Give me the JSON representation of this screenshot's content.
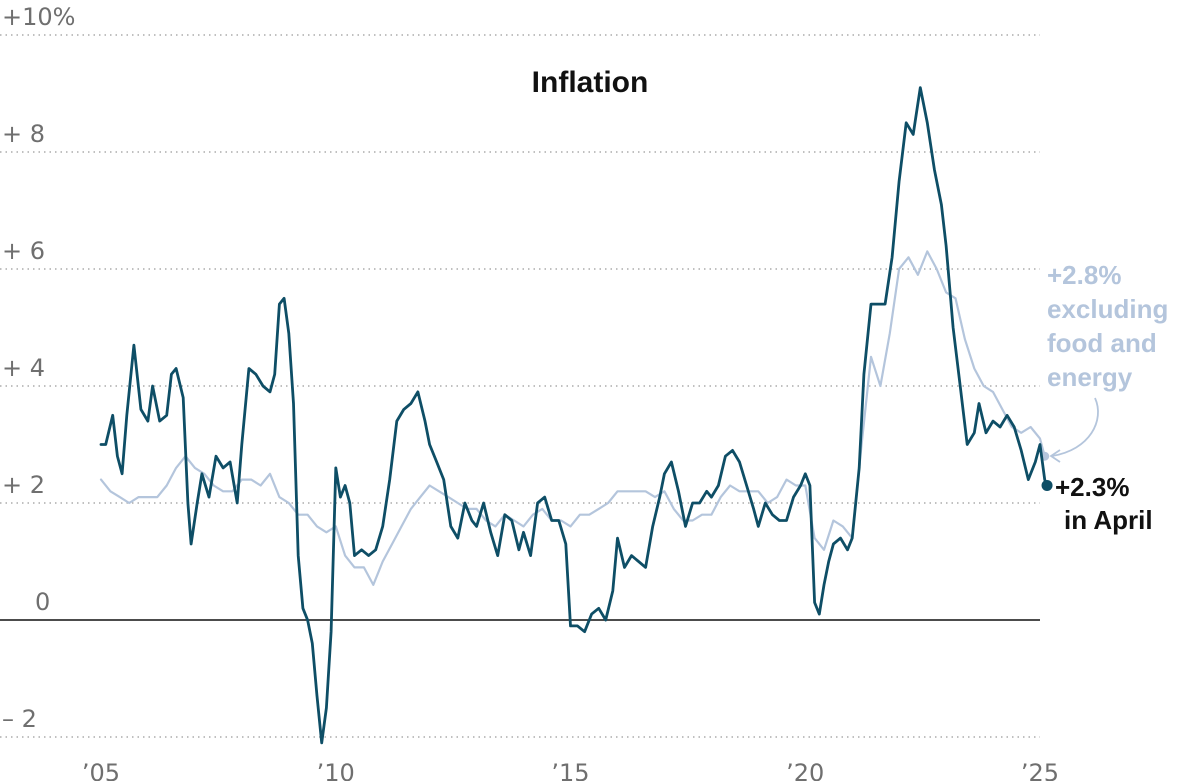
{
  "chart_data": {
    "type": "line",
    "title": "Inflation",
    "xlabel": "",
    "ylabel": "",
    "xlim": [
      2005.0,
      2025.3
    ],
    "ylim": [
      -2.2,
      10.2
    ],
    "yticks": [
      {
        "value": 10,
        "label": "+10%"
      },
      {
        "value": 8,
        "label": "+ 8"
      },
      {
        "value": 6,
        "label": "+ 6"
      },
      {
        "value": 4,
        "label": "+ 4"
      },
      {
        "value": 2,
        "label": "+ 2"
      },
      {
        "value": 0,
        "label": "0"
      },
      {
        "value": -2,
        "label": "– 2"
      }
    ],
    "xticks": [
      {
        "value": 2005,
        "label": "’05"
      },
      {
        "value": 2010,
        "label": "’10"
      },
      {
        "value": 2015,
        "label": "’15"
      },
      {
        "value": 2020,
        "label": "’20"
      },
      {
        "value": 2025,
        "label": "’25"
      }
    ],
    "grid": true,
    "zero_line": true,
    "series": [
      {
        "name": "",
        "color": "#b4c5dc",
        "points": [
          [
            2005.0,
            2.4
          ],
          [
            2005.2,
            2.2
          ],
          [
            2005.4,
            2.1
          ],
          [
            2005.6,
            2.0
          ],
          [
            2005.8,
            2.1
          ],
          [
            2006.0,
            2.1
          ],
          [
            2006.2,
            2.1
          ],
          [
            2006.4,
            2.3
          ],
          [
            2006.6,
            2.6
          ],
          [
            2006.8,
            2.8
          ],
          [
            2007.0,
            2.6
          ],
          [
            2007.2,
            2.5
          ],
          [
            2007.4,
            2.3
          ],
          [
            2007.6,
            2.2
          ],
          [
            2007.8,
            2.2
          ],
          [
            2008.0,
            2.4
          ],
          [
            2008.2,
            2.4
          ],
          [
            2008.4,
            2.3
          ],
          [
            2008.6,
            2.5
          ],
          [
            2008.8,
            2.1
          ],
          [
            2009.0,
            2.0
          ],
          [
            2009.2,
            1.8
          ],
          [
            2009.4,
            1.8
          ],
          [
            2009.6,
            1.6
          ],
          [
            2009.8,
            1.5
          ],
          [
            2010.0,
            1.6
          ],
          [
            2010.2,
            1.1
          ],
          [
            2010.4,
            0.9
          ],
          [
            2010.6,
            0.9
          ],
          [
            2010.8,
            0.6
          ],
          [
            2011.0,
            1.0
          ],
          [
            2011.2,
            1.3
          ],
          [
            2011.4,
            1.6
          ],
          [
            2011.6,
            1.9
          ],
          [
            2011.8,
            2.1
          ],
          [
            2012.0,
            2.3
          ],
          [
            2012.2,
            2.2
          ],
          [
            2012.4,
            2.1
          ],
          [
            2012.6,
            2.0
          ],
          [
            2012.8,
            1.9
          ],
          [
            2013.0,
            1.9
          ],
          [
            2013.2,
            1.7
          ],
          [
            2013.4,
            1.6
          ],
          [
            2013.6,
            1.8
          ],
          [
            2013.8,
            1.7
          ],
          [
            2014.0,
            1.6
          ],
          [
            2014.2,
            1.8
          ],
          [
            2014.4,
            1.9
          ],
          [
            2014.6,
            1.7
          ],
          [
            2014.8,
            1.7
          ],
          [
            2015.0,
            1.6
          ],
          [
            2015.2,
            1.8
          ],
          [
            2015.4,
            1.8
          ],
          [
            2015.6,
            1.9
          ],
          [
            2015.8,
            2.0
          ],
          [
            2016.0,
            2.2
          ],
          [
            2016.2,
            2.2
          ],
          [
            2016.4,
            2.2
          ],
          [
            2016.6,
            2.2
          ],
          [
            2016.8,
            2.1
          ],
          [
            2017.0,
            2.2
          ],
          [
            2017.2,
            1.9
          ],
          [
            2017.4,
            1.7
          ],
          [
            2017.6,
            1.7
          ],
          [
            2017.8,
            1.8
          ],
          [
            2018.0,
            1.8
          ],
          [
            2018.2,
            2.1
          ],
          [
            2018.4,
            2.3
          ],
          [
            2018.6,
            2.2
          ],
          [
            2018.8,
            2.2
          ],
          [
            2019.0,
            2.2
          ],
          [
            2019.2,
            2.0
          ],
          [
            2019.4,
            2.1
          ],
          [
            2019.6,
            2.4
          ],
          [
            2019.8,
            2.3
          ],
          [
            2020.0,
            2.3
          ],
          [
            2020.2,
            1.4
          ],
          [
            2020.4,
            1.2
          ],
          [
            2020.6,
            1.7
          ],
          [
            2020.8,
            1.6
          ],
          [
            2021.0,
            1.4
          ],
          [
            2021.2,
            3.0
          ],
          [
            2021.4,
            4.5
          ],
          [
            2021.6,
            4.0
          ],
          [
            2021.8,
            4.9
          ],
          [
            2022.0,
            6.0
          ],
          [
            2022.2,
            6.2
          ],
          [
            2022.4,
            5.9
          ],
          [
            2022.6,
            6.3
          ],
          [
            2022.8,
            6.0
          ],
          [
            2023.0,
            5.6
          ],
          [
            2023.2,
            5.5
          ],
          [
            2023.4,
            4.8
          ],
          [
            2023.6,
            4.3
          ],
          [
            2023.8,
            4.0
          ],
          [
            2024.0,
            3.9
          ],
          [
            2024.2,
            3.6
          ],
          [
            2024.4,
            3.3
          ],
          [
            2024.6,
            3.2
          ],
          [
            2024.8,
            3.3
          ],
          [
            2025.0,
            3.1
          ],
          [
            2025.1,
            2.8
          ]
        ],
        "end_label": "+2.8%",
        "annotation": [
          "excluding",
          "food and",
          "energy"
        ]
      },
      {
        "name": "",
        "color": "#0e4e66",
        "points": [
          [
            2005.0,
            3.0
          ],
          [
            2005.1,
            3.0
          ],
          [
            2005.25,
            3.5
          ],
          [
            2005.35,
            2.8
          ],
          [
            2005.45,
            2.5
          ],
          [
            2005.55,
            3.5
          ],
          [
            2005.7,
            4.7
          ],
          [
            2005.85,
            3.6
          ],
          [
            2006.0,
            3.4
          ],
          [
            2006.1,
            4.0
          ],
          [
            2006.25,
            3.4
          ],
          [
            2006.4,
            3.5
          ],
          [
            2006.5,
            4.2
          ],
          [
            2006.6,
            4.3
          ],
          [
            2006.75,
            3.8
          ],
          [
            2006.85,
            2.0
          ],
          [
            2006.92,
            1.3
          ],
          [
            2007.05,
            2.0
          ],
          [
            2007.15,
            2.5
          ],
          [
            2007.3,
            2.1
          ],
          [
            2007.45,
            2.8
          ],
          [
            2007.6,
            2.6
          ],
          [
            2007.75,
            2.7
          ],
          [
            2007.9,
            2.0
          ],
          [
            2008.0,
            3.0
          ],
          [
            2008.15,
            4.3
          ],
          [
            2008.3,
            4.2
          ],
          [
            2008.45,
            4.0
          ],
          [
            2008.6,
            3.9
          ],
          [
            2008.7,
            4.2
          ],
          [
            2008.8,
            5.4
          ],
          [
            2008.9,
            5.5
          ],
          [
            2009.0,
            4.9
          ],
          [
            2009.1,
            3.7
          ],
          [
            2009.2,
            1.1
          ],
          [
            2009.3,
            0.2
          ],
          [
            2009.4,
            0.0
          ],
          [
            2009.5,
            -0.4
          ],
          [
            2009.6,
            -1.3
          ],
          [
            2009.7,
            -2.1
          ],
          [
            2009.8,
            -1.5
          ],
          [
            2009.9,
            -0.2
          ],
          [
            2010.0,
            2.6
          ],
          [
            2010.1,
            2.1
          ],
          [
            2010.2,
            2.3
          ],
          [
            2010.3,
            2.0
          ],
          [
            2010.4,
            1.1
          ],
          [
            2010.55,
            1.2
          ],
          [
            2010.7,
            1.1
          ],
          [
            2010.85,
            1.2
          ],
          [
            2011.0,
            1.6
          ],
          [
            2011.15,
            2.4
          ],
          [
            2011.3,
            3.4
          ],
          [
            2011.45,
            3.6
          ],
          [
            2011.6,
            3.7
          ],
          [
            2011.75,
            3.9
          ],
          [
            2011.9,
            3.4
          ],
          [
            2012.0,
            3.0
          ],
          [
            2012.15,
            2.7
          ],
          [
            2012.3,
            2.4
          ],
          [
            2012.45,
            1.6
          ],
          [
            2012.6,
            1.4
          ],
          [
            2012.75,
            2.0
          ],
          [
            2012.9,
            1.7
          ],
          [
            2013.0,
            1.6
          ],
          [
            2013.15,
            2.0
          ],
          [
            2013.3,
            1.5
          ],
          [
            2013.45,
            1.1
          ],
          [
            2013.6,
            1.8
          ],
          [
            2013.75,
            1.7
          ],
          [
            2013.9,
            1.2
          ],
          [
            2014.0,
            1.5
          ],
          [
            2014.15,
            1.1
          ],
          [
            2014.3,
            2.0
          ],
          [
            2014.45,
            2.1
          ],
          [
            2014.6,
            1.7
          ],
          [
            2014.75,
            1.7
          ],
          [
            2014.9,
            1.3
          ],
          [
            2015.0,
            -0.1
          ],
          [
            2015.15,
            -0.1
          ],
          [
            2015.3,
            -0.2
          ],
          [
            2015.45,
            0.1
          ],
          [
            2015.6,
            0.2
          ],
          [
            2015.75,
            0.0
          ],
          [
            2015.9,
            0.5
          ],
          [
            2016.0,
            1.4
          ],
          [
            2016.15,
            0.9
          ],
          [
            2016.3,
            1.1
          ],
          [
            2016.45,
            1.0
          ],
          [
            2016.6,
            0.9
          ],
          [
            2016.75,
            1.6
          ],
          [
            2016.9,
            2.1
          ],
          [
            2017.0,
            2.5
          ],
          [
            2017.15,
            2.7
          ],
          [
            2017.3,
            2.2
          ],
          [
            2017.45,
            1.6
          ],
          [
            2017.6,
            2.0
          ],
          [
            2017.75,
            2.0
          ],
          [
            2017.9,
            2.2
          ],
          [
            2018.0,
            2.1
          ],
          [
            2018.15,
            2.3
          ],
          [
            2018.3,
            2.8
          ],
          [
            2018.45,
            2.9
          ],
          [
            2018.6,
            2.7
          ],
          [
            2018.75,
            2.3
          ],
          [
            2018.9,
            1.9
          ],
          [
            2019.0,
            1.6
          ],
          [
            2019.15,
            2.0
          ],
          [
            2019.3,
            1.8
          ],
          [
            2019.45,
            1.7
          ],
          [
            2019.6,
            1.7
          ],
          [
            2019.75,
            2.1
          ],
          [
            2019.9,
            2.3
          ],
          [
            2020.0,
            2.5
          ],
          [
            2020.1,
            2.3
          ],
          [
            2020.2,
            0.3
          ],
          [
            2020.3,
            0.1
          ],
          [
            2020.4,
            0.6
          ],
          [
            2020.5,
            1.0
          ],
          [
            2020.6,
            1.3
          ],
          [
            2020.75,
            1.4
          ],
          [
            2020.9,
            1.2
          ],
          [
            2021.0,
            1.4
          ],
          [
            2021.15,
            2.6
          ],
          [
            2021.25,
            4.2
          ],
          [
            2021.4,
            5.4
          ],
          [
            2021.55,
            5.4
          ],
          [
            2021.7,
            5.4
          ],
          [
            2021.85,
            6.2
          ],
          [
            2022.0,
            7.5
          ],
          [
            2022.15,
            8.5
          ],
          [
            2022.3,
            8.3
          ],
          [
            2022.45,
            9.1
          ],
          [
            2022.6,
            8.5
          ],
          [
            2022.75,
            7.7
          ],
          [
            2022.9,
            7.1
          ],
          [
            2023.0,
            6.4
          ],
          [
            2023.15,
            5.0
          ],
          [
            2023.3,
            4.0
          ],
          [
            2023.45,
            3.0
          ],
          [
            2023.6,
            3.2
          ],
          [
            2023.7,
            3.7
          ],
          [
            2023.85,
            3.2
          ],
          [
            2024.0,
            3.4
          ],
          [
            2024.15,
            3.3
          ],
          [
            2024.3,
            3.5
          ],
          [
            2024.45,
            3.3
          ],
          [
            2024.6,
            2.9
          ],
          [
            2024.75,
            2.4
          ],
          [
            2024.9,
            2.7
          ],
          [
            2025.0,
            3.0
          ],
          [
            2025.1,
            2.4
          ],
          [
            2025.15,
            2.3
          ]
        ],
        "end_label": "+2.3%",
        "annotation": [
          "in April"
        ]
      }
    ]
  }
}
